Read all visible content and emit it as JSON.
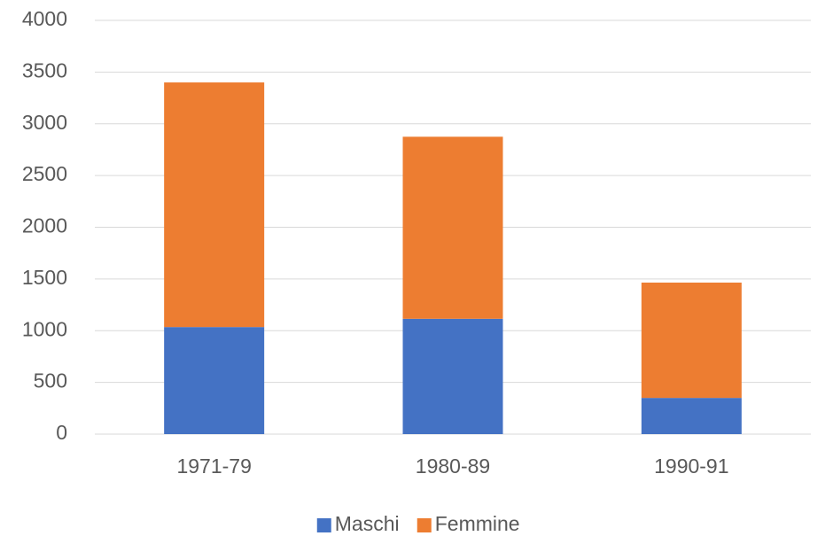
{
  "chart_data": {
    "type": "bar",
    "stacked": true,
    "categories": [
      "1971-79",
      "1980-89",
      "1990-91"
    ],
    "series": [
      {
        "name": "Maschi",
        "color": "#4472c4",
        "values": [
          1035,
          1115,
          350
        ]
      },
      {
        "name": "Femmine",
        "color": "#ed7d31",
        "values": [
          2365,
          1760,
          1115
        ]
      }
    ],
    "ylim": [
      0,
      4000
    ],
    "yticks": [
      0,
      500,
      1000,
      1500,
      2000,
      2500,
      3000,
      3500,
      4000
    ],
    "grid": true,
    "legend": "bottom"
  }
}
